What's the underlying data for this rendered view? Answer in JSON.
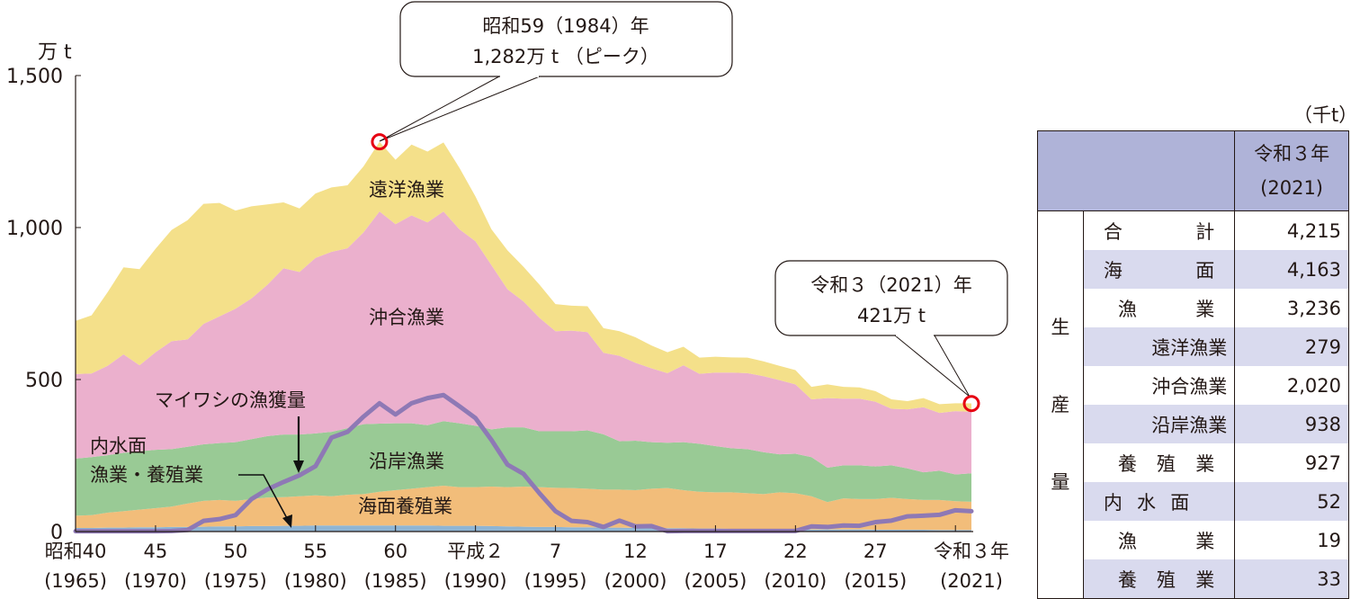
{
  "chart_data": {
    "type": "area",
    "stacked": true,
    "yunit": "万 t",
    "ylim": [
      0,
      1500
    ],
    "yticks": [
      "0",
      "500",
      "1,000",
      "1,500"
    ],
    "ytick_values": [
      0,
      500,
      1000,
      1500
    ],
    "x_start": 1965,
    "x_end": 2021,
    "xtick_labels": [
      {
        "year": 1965,
        "era": "昭和40",
        "western": "(1965)"
      },
      {
        "year": 1970,
        "era": "45",
        "western": "(1970)"
      },
      {
        "year": 1975,
        "era": "50",
        "western": "(1975)"
      },
      {
        "year": 1980,
        "era": "55",
        "western": "(1980)"
      },
      {
        "year": 1985,
        "era": "60",
        "western": "(1985)"
      },
      {
        "year": 1990,
        "era": "平成２",
        "western": "(1990)"
      },
      {
        "year": 1995,
        "era": "7",
        "western": "(1995)"
      },
      {
        "year": 2000,
        "era": "12",
        "western": "(2000)"
      },
      {
        "year": 2005,
        "era": "17",
        "western": "(2005)"
      },
      {
        "year": 2010,
        "era": "22",
        "western": "(2010)"
      },
      {
        "year": 2015,
        "era": "27",
        "western": "(2015)"
      },
      {
        "year": 2021,
        "era": "令和３年",
        "western": "(2021)"
      }
    ],
    "series": [
      {
        "name": "内水面漁業・養殖業",
        "label": "内水面",
        "label2": "漁業・養殖業",
        "color": "#8fb5d4",
        "values": [
          12,
          12,
          13,
          13,
          14,
          14,
          15,
          15,
          16,
          17,
          17,
          18,
          18,
          19,
          19,
          20,
          20,
          20,
          20,
          20,
          20,
          20,
          20,
          19,
          19,
          19,
          18,
          17,
          16,
          15,
          15,
          14,
          14,
          13,
          13,
          12,
          12,
          11,
          11,
          10,
          10,
          9,
          9,
          8,
          8,
          8,
          7,
          7,
          7,
          7,
          6,
          6,
          6,
          6,
          5,
          5,
          5.2
        ]
      },
      {
        "name": "海面養殖業",
        "color": "#f2bd7a",
        "values": [
          40,
          42,
          49,
          54,
          58,
          63,
          67,
          77,
          85,
          87,
          84,
          89,
          94,
          94,
          97,
          99,
          96,
          101,
          103,
          111,
          116,
          121,
          126,
          132,
          127,
          127,
          130,
          129,
          132,
          131,
          129,
          129,
          127,
          125,
          125,
          124,
          129,
          132,
          125,
          121,
          119,
          120,
          117,
          115,
          121,
          118,
          109,
          90,
          102,
          100,
          101,
          105,
          101,
          98,
          99,
          95,
          92.7
        ]
      },
      {
        "name": "沿岸漁業",
        "color": "#99ca95",
        "values": [
          188,
          191,
          189,
          192,
          192,
          192,
          189,
          187,
          186,
          187,
          193,
          197,
          202,
          206,
          203,
          204,
          212,
          219,
          230,
          224,
          220,
          215,
          204,
          212,
          210,
          202,
          188,
          197,
          195,
          184,
          186,
          187,
          192,
          182,
          159,
          163,
          153,
          149,
          158,
          158,
          152,
          145,
          145,
          138,
          125,
          130,
          129,
          113,
          109,
          111,
          107,
          107,
          101,
          91,
          96,
          88,
          93.8
        ]
      },
      {
        "name": "沖合漁業",
        "color": "#ebb0cd",
        "values": [
          278,
          275,
          294,
          324,
          283,
          321,
          355,
          353,
          396,
          417,
          439,
          463,
          498,
          547,
          535,
          577,
          592,
          592,
          631,
          698,
          655,
          684,
          667,
          690,
          638,
          607,
          540,
          454,
          414,
          373,
          329,
          331,
          323,
          268,
          281,
          256,
          243,
          229,
          253,
          230,
          242,
          249,
          250,
          250,
          244,
          228,
          190,
          229,
          219,
          219,
          213,
          186,
          194,
          214,
          190,
          208,
          202
        ]
      },
      {
        "name": "遠洋漁業",
        "color": "#f4e08a",
        "values": [
          175,
          191,
          242,
          286,
          316,
          340,
          366,
          392,
          395,
          373,
          323,
          303,
          264,
          217,
          209,
          212,
          212,
          207,
          217,
          229,
          212,
          233,
          233,
          227,
          202,
          147,
          118,
          128,
          114,
          109,
          89,
          82,
          85,
          81,
          81,
          84,
          75,
          69,
          61,
          53,
          52,
          50,
          51,
          49,
          47,
          47,
          41,
          45,
          39,
          37,
          35,
          31,
          27,
          30,
          29,
          26,
          27.9
        ]
      }
    ],
    "line": {
      "name": "マイワシの漁獲量",
      "color": "#8e79b5",
      "values": [
        1,
        1,
        1,
        1,
        1,
        1,
        2,
        5,
        35,
        41,
        54,
        107,
        139,
        163,
        185,
        215,
        309,
        328,
        378,
        422,
        385,
        422,
        439,
        449,
        412,
        373,
        301,
        220,
        190,
        126,
        67,
        35,
        31,
        15,
        36,
        17,
        18,
        1,
        2,
        2,
        2,
        2,
        2,
        2,
        2,
        2,
        17,
        15,
        20,
        19,
        31,
        36,
        50,
        52,
        55,
        70,
        67
      ]
    },
    "annotations": {
      "peak": {
        "line1": "昭和59（1984）年",
        "line2": "1,282万 t （ピーク）",
        "year": 1984,
        "value": 1282
      },
      "latest": {
        "line1": "令和３（2021）年",
        "line2": "421万 t",
        "year": 2021,
        "value": 421
      },
      "marker_color": "#e60012"
    }
  },
  "table": {
    "unit": "（千t）",
    "header": {
      "line1": "令和３年",
      "line2": "(2021)"
    },
    "side_label": [
      "生",
      "産",
      "量"
    ],
    "rows": [
      {
        "label": "合 計",
        "value": "4,215"
      },
      {
        "label": "海 面",
        "value": "4,163"
      },
      {
        "label": "漁 業",
        "value": "3,236"
      },
      {
        "label": "遠洋漁業",
        "value": "279"
      },
      {
        "label": "沖合漁業",
        "value": "2,020"
      },
      {
        "label": "沿岸漁業",
        "value": "938"
      },
      {
        "label": "養 殖 業",
        "value": "927"
      },
      {
        "label": "内 水 面",
        "value": "52"
      },
      {
        "label": "漁 業",
        "value": "19"
      },
      {
        "label": "養 殖 業",
        "value": "33"
      }
    ]
  }
}
